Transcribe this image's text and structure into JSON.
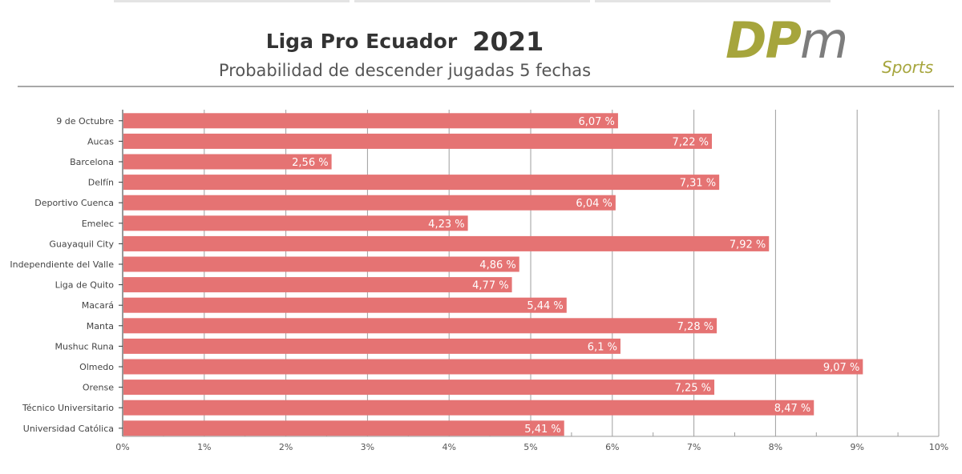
{
  "header": {
    "title": "Liga Pro Ecuador",
    "year": "2021",
    "subtitle": "Probabilidad de descender jugadas 5 fechas"
  },
  "logo": {
    "letters_dp": "DP",
    "letter_m": "m",
    "tagline": "Sports"
  },
  "colors": {
    "bar": "#e57373",
    "logo_olive": "#a6a53c",
    "logo_grey": "#7d7d7d"
  },
  "chart_data": {
    "type": "bar",
    "orientation": "horizontal",
    "title": "Liga Pro Ecuador 2021",
    "subtitle": "Probabilidad de descender jugadas 5 fechas",
    "categories": [
      "9 de Octubre",
      "Aucas",
      "Barcelona",
      "Delfín",
      "Deportivo Cuenca",
      "Emelec",
      "Guayaquil City",
      "Independiente del Valle",
      "Liga de Quito",
      "Macará",
      "Manta",
      "Mushuc Runa",
      "Olmedo",
      "Orense",
      "Técnico Universitario",
      "Universidad Católica"
    ],
    "values": [
      6.07,
      7.22,
      2.56,
      7.31,
      6.04,
      4.23,
      7.92,
      4.86,
      4.77,
      5.44,
      7.28,
      6.1,
      9.07,
      7.25,
      8.47,
      5.41
    ],
    "value_labels": [
      "6,07 %",
      "7,22 %",
      "2,56 %",
      "7,31 %",
      "6,04 %",
      "4,23 %",
      "7,92 %",
      "4,86 %",
      "4,77 %",
      "5,44 %",
      "7,28 %",
      "6,1 %",
      "9,07 %",
      "7,25 %",
      "8,47 %",
      "5,41 %"
    ],
    "xlim": [
      0,
      10
    ],
    "xticks": [
      0,
      1,
      2,
      3,
      4,
      5,
      6,
      7,
      8,
      9,
      10
    ],
    "xtick_labels": [
      "0%",
      "1%",
      "2%",
      "3%",
      "4%",
      "5%",
      "6%",
      "7%",
      "8%",
      "9%",
      "10%"
    ],
    "grid": true,
    "xlabel": "",
    "ylabel": ""
  }
}
